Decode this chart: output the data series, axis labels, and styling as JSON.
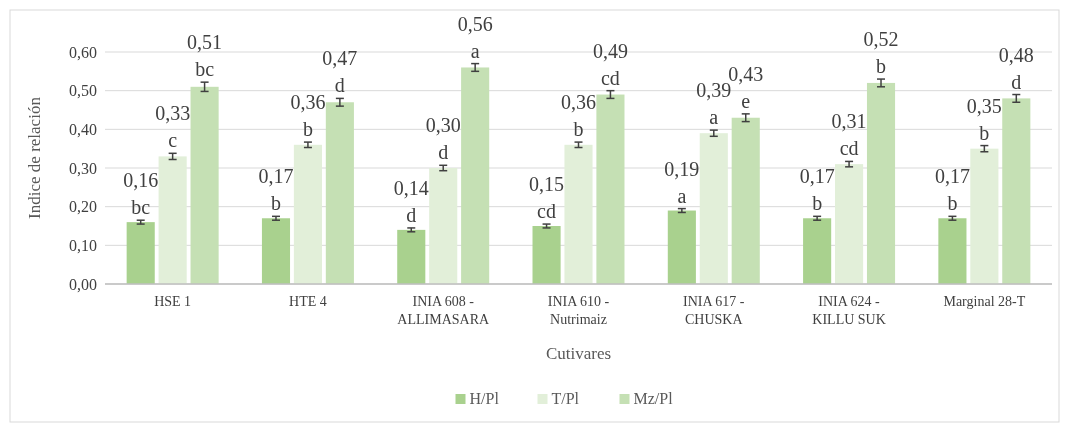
{
  "chart_data": {
    "type": "bar",
    "xlabel": "Cutivares",
    "ylabel": "Indice de relación",
    "categories": [
      "HSE 1",
      "HTE 4",
      "INIA 608 - ALLIMASARA",
      "INIA 610 - Nutrimaiz",
      "INIA 617 - CHUSKA",
      "INIA 624 - KILLU SUK",
      "Marginal 28-T"
    ],
    "series": [
      {
        "name": "H/Pl",
        "color": "#a9d18e",
        "values": [
          0.16,
          0.17,
          0.14,
          0.15,
          0.19,
          0.17,
          0.17
        ],
        "errors": [
          0.005,
          0.005,
          0.005,
          0.005,
          0.005,
          0.005,
          0.005
        ],
        "value_labels": [
          "0,16\nbc",
          "0,17\nb",
          "0,14\nd",
          "0,15\ncd",
          "0,19\na",
          "0,17\nb",
          "0,17\nb"
        ]
      },
      {
        "name": "T/Pl",
        "color": "#e2efd9",
        "values": [
          0.33,
          0.36,
          0.3,
          0.36,
          0.39,
          0.31,
          0.35
        ],
        "errors": [
          0.008,
          0.007,
          0.007,
          0.007,
          0.008,
          0.007,
          0.008
        ],
        "value_labels": [
          "0,33\nc",
          "0,36\nb",
          "0,30\nd",
          "0,36\nb",
          "0,39\na",
          "0,31\ncd",
          "0,35\nb"
        ]
      },
      {
        "name": "Mz/Pl",
        "color": "#c5e0b4",
        "values": [
          0.51,
          0.47,
          0.56,
          0.49,
          0.43,
          0.52,
          0.48
        ],
        "errors": [
          0.012,
          0.01,
          0.01,
          0.01,
          0.01,
          0.01,
          0.01
        ],
        "value_labels": [
          "0,51\nbc",
          "0,47\nd",
          "0,56\na",
          "0,49\ncd",
          "0,43\ne",
          "0,52\nb",
          "0,48\nd"
        ]
      }
    ],
    "ylim": [
      0,
      0.6
    ],
    "yticks": [
      {
        "value": 0,
        "label": "0,00"
      },
      {
        "value": 0.1,
        "label": "0,10"
      },
      {
        "value": 0.2,
        "label": "0,20"
      },
      {
        "value": 0.3,
        "label": "0,30"
      },
      {
        "value": 0.4,
        "label": "0,40"
      },
      {
        "value": 0.5,
        "label": "0,50"
      },
      {
        "value": 0.6,
        "label": "0,60"
      }
    ],
    "grid": "y",
    "legend": "bottom"
  }
}
